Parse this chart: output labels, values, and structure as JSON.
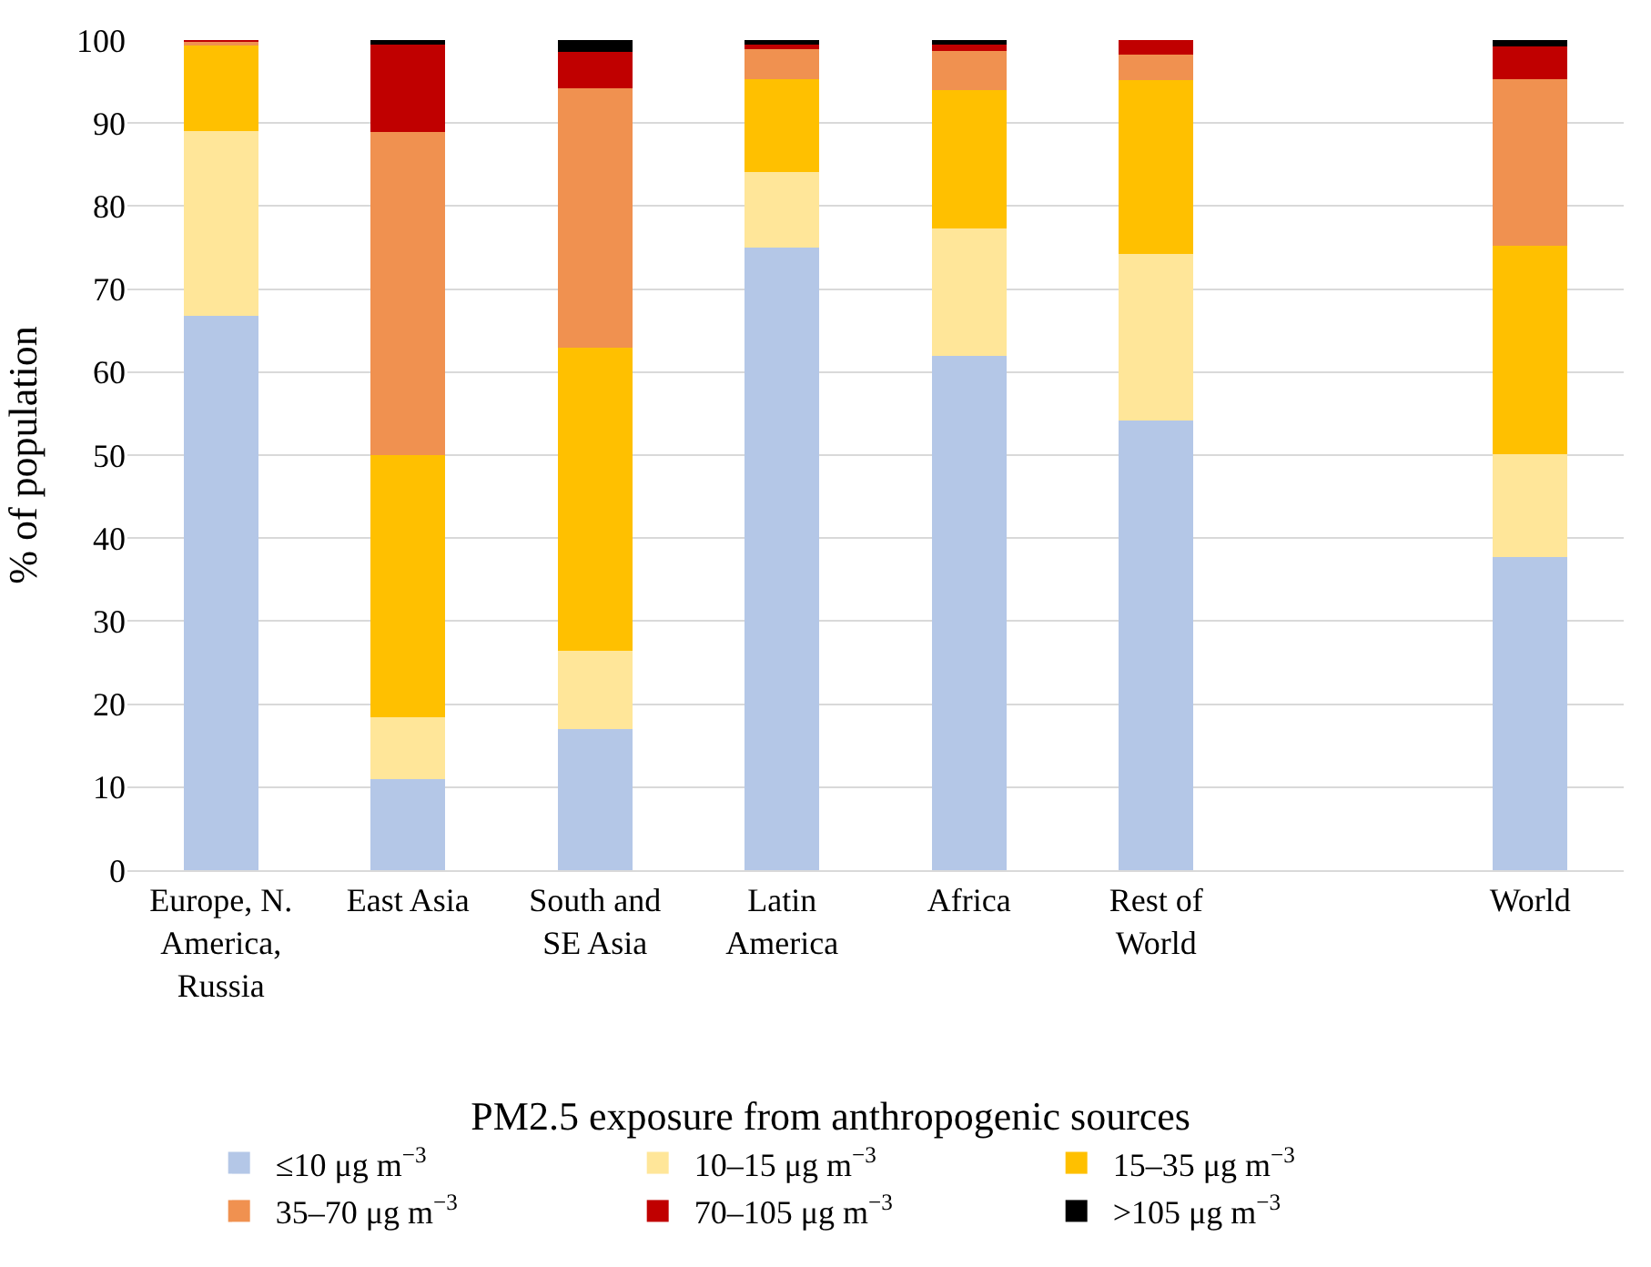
{
  "chart_data": {
    "type": "bar",
    "stacked": true,
    "ylabel": "% of population",
    "legend_title": "PM2.5 exposure from anthropogenic sources",
    "categories": [
      "Europe, N.\nAmerica,\nRussia",
      "East Asia",
      "South and\nSE Asia",
      "Latin\nAmerica",
      "Africa",
      "Rest of\nWorld",
      null,
      "World"
    ],
    "series": [
      {
        "name": "≤10 μg m$^{−3}$",
        "color": "#b4c7e7",
        "values": [
          66.8,
          11,
          17,
          75,
          62,
          54.2,
          null,
          37.7
        ]
      },
      {
        "name": "10–15 μg m$^{−3}$",
        "color": "#ffe699",
        "values": [
          22.2,
          7.4,
          9.4,
          9.1,
          15.3,
          20,
          null,
          12.4
        ]
      },
      {
        "name": "15–35 μg m$^{−3}$",
        "color": "#ffc000",
        "values": [
          10.5,
          31.6,
          36.5,
          11.2,
          16.7,
          21,
          null,
          25.1
        ]
      },
      {
        "name": "35–70 μg m$^{−3}$",
        "color": "#f09150",
        "values": [
          0.3,
          38.9,
          31.3,
          3.8,
          4.7,
          3.1,
          null,
          20.1
        ]
      },
      {
        "name": "70–105 μg m$^{−3}$",
        "color": "#c00000",
        "values": [
          0.2,
          10.5,
          4.4,
          0.3,
          0.7,
          1.7,
          null,
          3.9
        ]
      },
      {
        "name": ">105 μg m$^{−3}$",
        "color": "#000000",
        "values": [
          0,
          0.6,
          1.4,
          0.6,
          0.6,
          0,
          null,
          0.8
        ]
      }
    ],
    "ylim": [
      0,
      100
    ],
    "yticks": [
      0,
      10,
      20,
      30,
      40,
      50,
      60,
      70,
      80,
      90,
      100
    ],
    "grid": "y",
    "legend": "bottom"
  }
}
